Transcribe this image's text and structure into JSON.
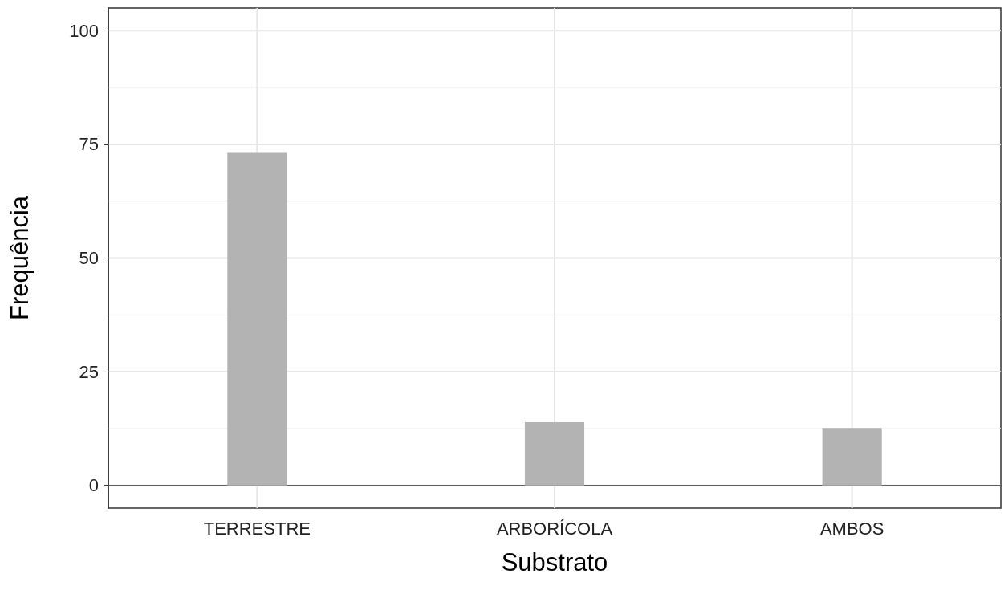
{
  "chart_data": {
    "type": "bar",
    "xlabel": "Substrato",
    "ylabel": "Frequência",
    "categories": [
      "TERRESTRE",
      "ARBORÍCOLA",
      "AMBOS"
    ],
    "values": [
      73.3,
      13.9,
      12.6
    ],
    "color": "#b3b3b3",
    "ylim": [
      -5,
      105
    ],
    "yticks": [
      0,
      25,
      50,
      75,
      100
    ],
    "grid": true
  }
}
